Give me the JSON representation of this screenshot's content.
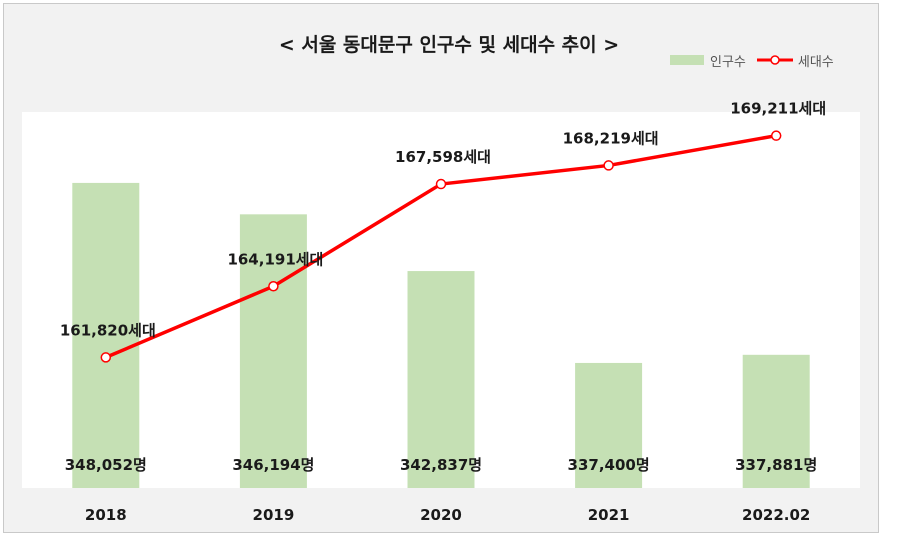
{
  "chart_data": {
    "type": "bar",
    "title": "< 서울 동대문구 인구수 및 세대수 추이 >",
    "categories": [
      "2018",
      "2019",
      "2020",
      "2021",
      "2022.02"
    ],
    "series": [
      {
        "name": "인구수",
        "type": "bar",
        "values": [
          348052,
          346194,
          342837,
          337400,
          337881
        ],
        "labels": [
          "348,052명",
          "346,194명",
          "342,837명",
          "337,400명",
          "337,881명"
        ],
        "color": "#c5e0b4"
      },
      {
        "name": "세대수",
        "type": "line",
        "values": [
          161820,
          164191,
          167598,
          168219,
          169211
        ],
        "labels": [
          "161,820세대",
          "164,191세대",
          "167,598세대",
          "168,219세대",
          "169,211세대"
        ],
        "color": "#ff0000"
      }
    ],
    "legend_position": "top-right",
    "grid": false
  }
}
